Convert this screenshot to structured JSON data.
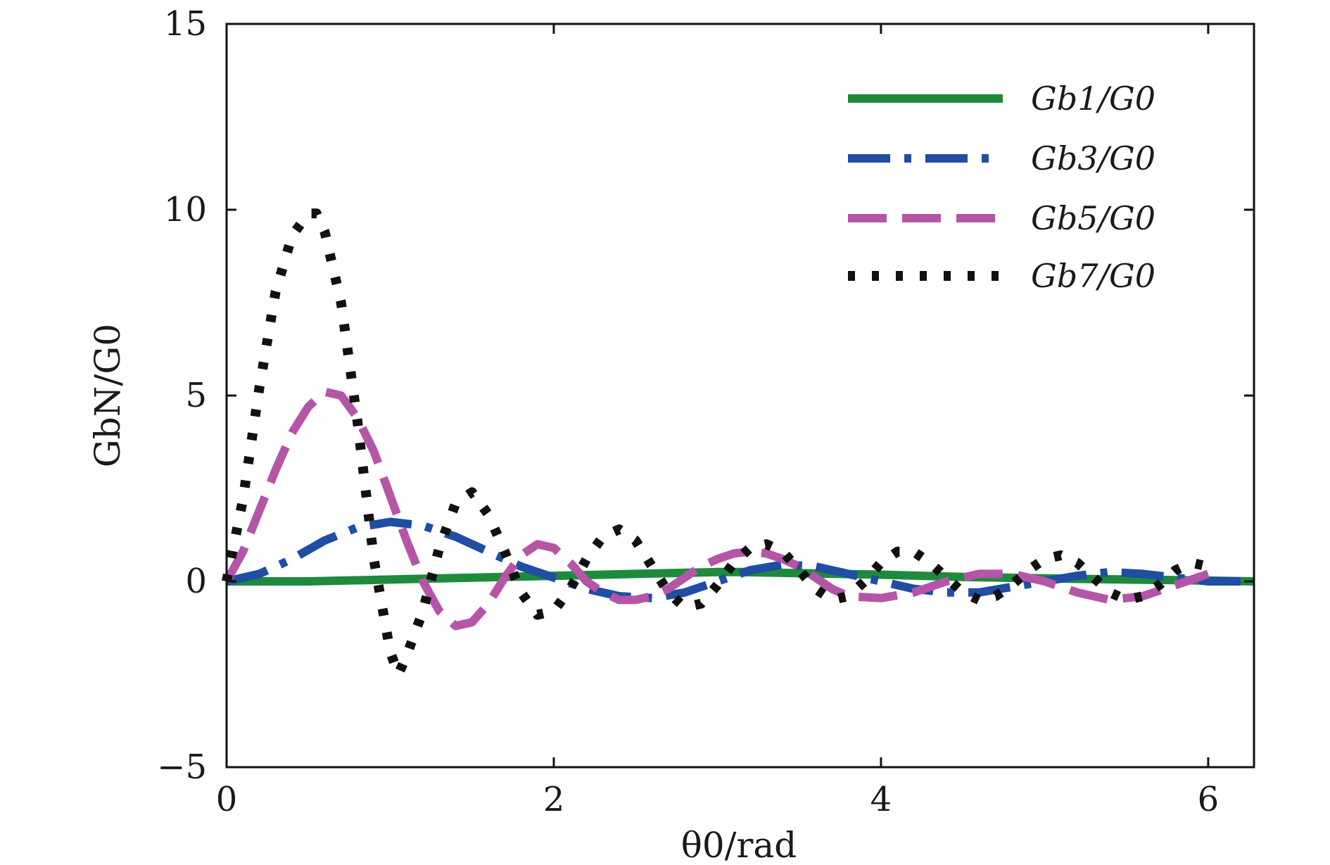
{
  "chart_data": {
    "type": "line",
    "title": "",
    "xlabel": "θ0/rad",
    "ylabel": "GbN/G0",
    "xlim": [
      0,
      6.28
    ],
    "ylim": [
      -5,
      15
    ],
    "xticks": [
      0,
      2,
      4,
      6
    ],
    "yticks": [
      -5,
      0,
      5,
      10,
      15
    ],
    "xtick_labels": [
      "0",
      "2",
      "4",
      "6"
    ],
    "ytick_labels": [
      "−5",
      "0",
      "5",
      "10",
      "15"
    ],
    "legend_position": "top-right",
    "series": [
      {
        "name": "Gb1/G0",
        "color": "#1e8a3c",
        "style": "solid",
        "x": [
          0,
          0.5,
          1.0,
          1.5,
          2.0,
          2.5,
          3.0,
          3.14,
          3.5,
          4.0,
          4.5,
          5.0,
          5.5,
          6.0,
          6.28
        ],
        "y": [
          0,
          0.0,
          0.05,
          0.1,
          0.15,
          0.2,
          0.25,
          0.25,
          0.22,
          0.18,
          0.12,
          0.08,
          0.05,
          0.02,
          0
        ]
      },
      {
        "name": "Gb3/G0",
        "color": "#1f4ea3",
        "style": "dashdot",
        "x": [
          0,
          0.2,
          0.4,
          0.6,
          0.8,
          1.0,
          1.2,
          1.4,
          1.6,
          1.8,
          2.0,
          2.2,
          2.4,
          2.6,
          2.8,
          3.0,
          3.2,
          3.4,
          3.6,
          3.8,
          4.0,
          4.2,
          4.4,
          4.6,
          4.8,
          5.0,
          5.2,
          5.4,
          5.6,
          5.8,
          6.0,
          6.28
        ],
        "y": [
          0,
          0.2,
          0.6,
          1.1,
          1.45,
          1.6,
          1.5,
          1.2,
          0.8,
          0.4,
          0.1,
          -0.2,
          -0.4,
          -0.45,
          -0.3,
          0.0,
          0.3,
          0.45,
          0.4,
          0.2,
          0.0,
          -0.2,
          -0.3,
          -0.3,
          -0.15,
          0.0,
          0.15,
          0.25,
          0.2,
          0.1,
          0.0,
          0
        ]
      },
      {
        "name": "Gb5/G0",
        "color": "#b555a8",
        "style": "dashed",
        "x": [
          0,
          0.1,
          0.2,
          0.3,
          0.4,
          0.5,
          0.6,
          0.7,
          0.8,
          0.9,
          1.0,
          1.1,
          1.2,
          1.3,
          1.4,
          1.5,
          1.6,
          1.7,
          1.8,
          1.9,
          2.0,
          2.1,
          2.2,
          2.3,
          2.4,
          2.5,
          2.6,
          2.7,
          2.8,
          2.9,
          3.0,
          3.1,
          3.2,
          3.3,
          3.4,
          3.5,
          3.6,
          3.7,
          3.8,
          4.0,
          4.2,
          4.4,
          4.6,
          4.8,
          5.0,
          5.2,
          5.4,
          5.6,
          5.8,
          6.0
        ],
        "y": [
          0,
          0.8,
          1.9,
          3.0,
          4.0,
          4.7,
          5.1,
          5.0,
          4.4,
          3.5,
          2.3,
          1.1,
          0.0,
          -0.8,
          -1.2,
          -1.1,
          -0.6,
          0.1,
          0.7,
          1.0,
          0.9,
          0.5,
          0.0,
          -0.3,
          -0.5,
          -0.5,
          -0.4,
          -0.2,
          0.1,
          0.4,
          0.6,
          0.75,
          0.8,
          0.75,
          0.6,
          0.4,
          0.1,
          -0.2,
          -0.4,
          -0.45,
          -0.3,
          0.0,
          0.2,
          0.2,
          0.0,
          -0.3,
          -0.5,
          -0.4,
          -0.1,
          0.2
        ]
      },
      {
        "name": "Gb7/G0",
        "color": "#111111",
        "style": "dotted",
        "x": [
          0,
          0.1,
          0.2,
          0.3,
          0.4,
          0.5,
          0.55,
          0.6,
          0.7,
          0.8,
          0.9,
          1.0,
          1.05,
          1.1,
          1.2,
          1.3,
          1.4,
          1.5,
          1.6,
          1.7,
          1.8,
          1.9,
          2.0,
          2.1,
          2.2,
          2.3,
          2.4,
          2.5,
          2.6,
          2.7,
          2.8,
          2.9,
          3.0,
          3.1,
          3.2,
          3.3,
          3.4,
          3.5,
          3.6,
          3.7,
          3.8,
          3.9,
          4.0,
          4.1,
          4.2,
          4.3,
          4.4,
          4.5,
          4.6,
          4.7,
          4.8,
          4.9,
          5.0,
          5.1,
          5.2,
          5.3,
          5.4,
          5.5,
          5.6,
          5.7,
          5.8,
          5.9,
          6.0
        ],
        "y": [
          0,
          2.2,
          5.2,
          7.8,
          9.3,
          9.9,
          9.9,
          9.4,
          7.5,
          4.3,
          0.6,
          -1.9,
          -2.5,
          -2.0,
          -0.8,
          0.9,
          2.1,
          2.4,
          1.8,
          0.8,
          -0.3,
          -0.9,
          -0.8,
          -0.2,
          0.6,
          1.2,
          1.4,
          1.1,
          0.4,
          -0.3,
          -0.7,
          -0.6,
          -0.1,
          0.5,
          0.9,
          1.0,
          0.8,
          0.3,
          -0.2,
          -0.5,
          -0.4,
          0.0,
          0.5,
          0.8,
          0.8,
          0.5,
          0.1,
          -0.3,
          -0.5,
          -0.4,
          -0.1,
          0.3,
          0.6,
          0.7,
          0.5,
          0.1,
          -0.3,
          -0.5,
          -0.4,
          -0.1,
          0.3,
          0.5,
          0.4
        ]
      }
    ]
  }
}
